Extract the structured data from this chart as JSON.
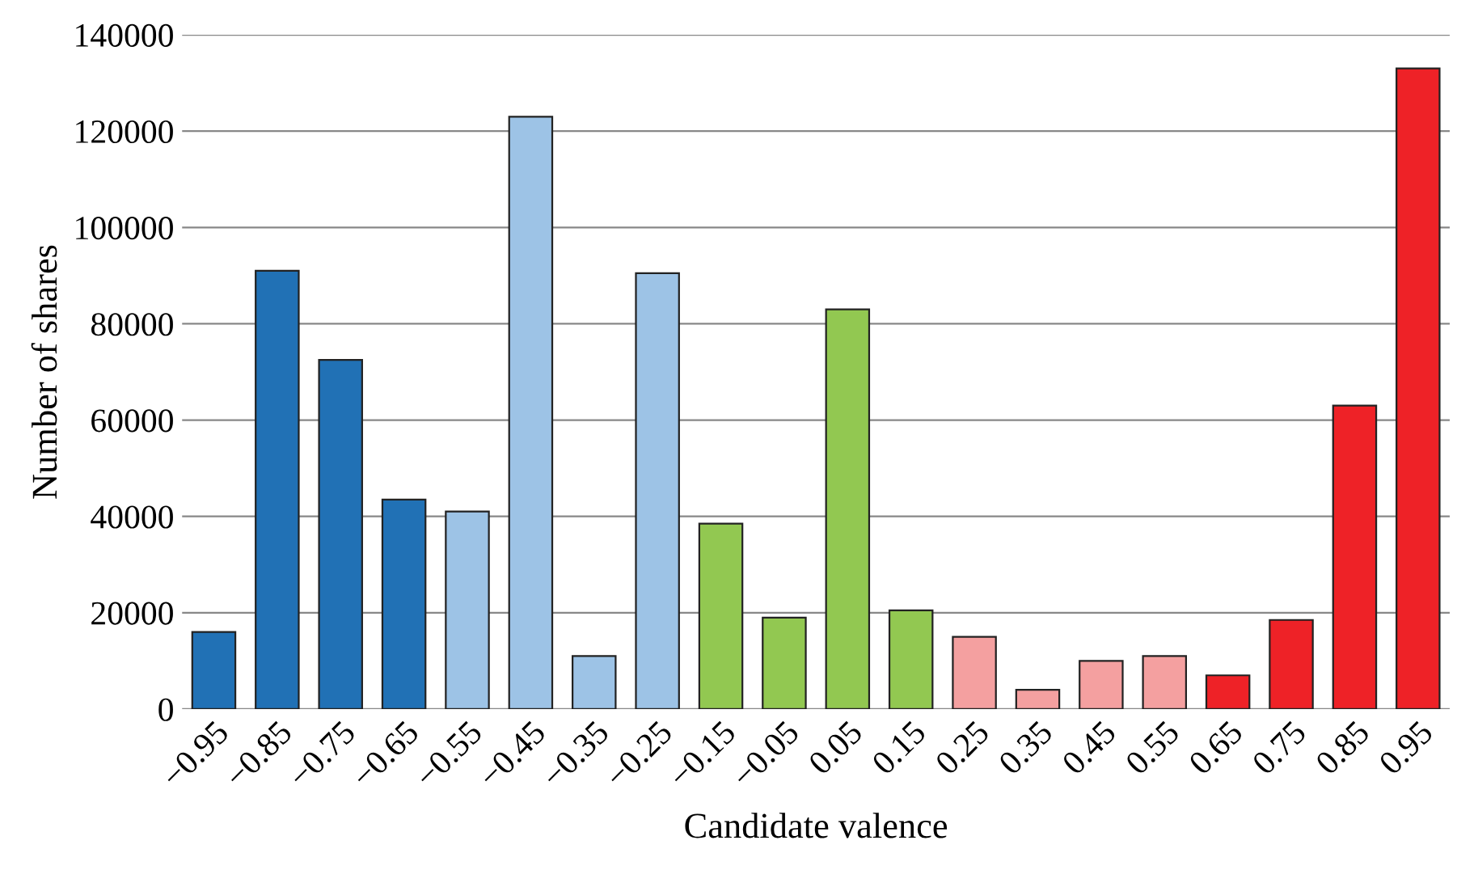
{
  "chart_data": {
    "type": "bar",
    "xlabel": "Candidate valence",
    "ylabel": "Number of shares",
    "categories": [
      "−0.95",
      "−0.85",
      "−0.75",
      "−0.65",
      "−0.55",
      "−0.45",
      "−0.35",
      "−0.25",
      "−0.15",
      "−0.05",
      "0.05",
      "0.15",
      "0.25",
      "0.35",
      "0.45",
      "0.55",
      "0.65",
      "0.75",
      "0.85",
      "0.95"
    ],
    "values": [
      16000,
      91000,
      72500,
      43500,
      41000,
      123000,
      11000,
      90500,
      38500,
      19000,
      83000,
      20500,
      15000,
      4000,
      10000,
      11000,
      7000,
      18500,
      63000,
      133000
    ],
    "colors": [
      "#2171b5",
      "#2171b5",
      "#2171b5",
      "#2171b5",
      "#9dc3e6",
      "#9dc3e6",
      "#9dc3e6",
      "#9dc3e6",
      "#92c851",
      "#92c851",
      "#92c851",
      "#92c851",
      "#f4a0a0",
      "#f4a0a0",
      "#f4a0a0",
      "#f4a0a0",
      "#ee2227",
      "#ee2227",
      "#ee2227",
      "#ee2227"
    ],
    "ylim": [
      0,
      140000
    ],
    "yticks": [
      0,
      20000,
      40000,
      60000,
      80000,
      100000,
      120000,
      140000
    ],
    "grid": "y"
  }
}
